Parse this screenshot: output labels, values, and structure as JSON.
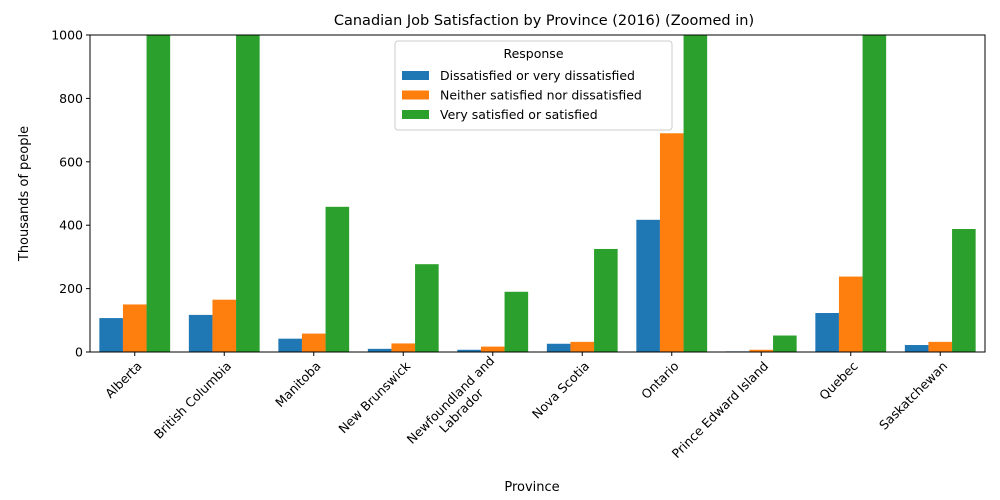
{
  "chart_data": {
    "type": "bar",
    "title": "Canadian Job Satisfaction by Province (2016) (Zoomed in)",
    "xlabel": "Province",
    "ylabel": "Thousands of people",
    "ylim": [
      0,
      1000
    ],
    "yticks": [
      0,
      200,
      400,
      600,
      800,
      1000
    ],
    "grid": false,
    "legend": {
      "title": "Response",
      "position": "top-center"
    },
    "categories": [
      [
        "Alberta"
      ],
      [
        "British Columbia"
      ],
      [
        "Manitoba"
      ],
      [
        "New Brunswick"
      ],
      [
        "Newfoundland and",
        "Labrador"
      ],
      [
        "Nova Scotia"
      ],
      [
        "Ontario"
      ],
      [
        "Prince Edward Island"
      ],
      [
        "Quebec"
      ],
      [
        "Saskatchewan"
      ]
    ],
    "series": [
      {
        "name": "Dissatisfied or very dissatisfied",
        "color": "#1f77b4",
        "values": [
          107,
          117,
          42,
          10,
          7,
          26,
          417,
          2,
          123,
          22
        ]
      },
      {
        "name": "Neither satisfied nor dissatisfied",
        "color": "#ff7f0e",
        "values": [
          150,
          165,
          58,
          27,
          17,
          32,
          690,
          7,
          238,
          32
        ]
      },
      {
        "name": "Very satisfied or satisfied",
        "color": "#2ca02c",
        "values": [
          1000,
          1000,
          458,
          277,
          190,
          325,
          1000,
          52,
          1000,
          388
        ]
      }
    ]
  }
}
